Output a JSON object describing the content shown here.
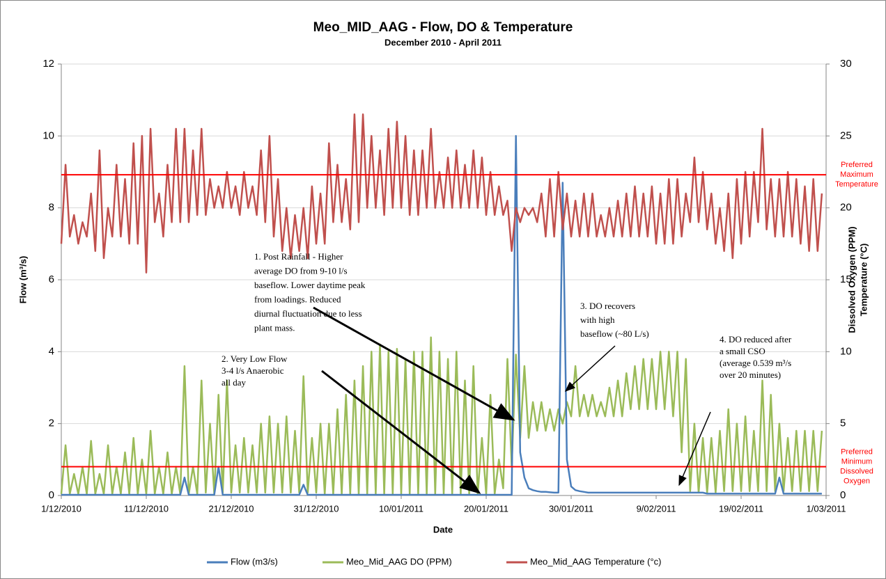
{
  "chart_data": {
    "type": "line",
    "title": "Meo_MID_AAG - Flow, DO & Temperature",
    "subtitle": "December 2010 - April 2011",
    "xlabel": "Date",
    "ylabel": "Flow (m³/s)",
    "y2label": [
      "Dissolved Oxygen (PPM)",
      "Temperature (°C)"
    ],
    "xlim": [
      "2010-12-01T00:00",
      "2011-03-01T00:00"
    ],
    "xticks": [
      {
        "value": "2010-12-01T00:00",
        "label": "1/12/2010"
      },
      {
        "value": "2010-12-11T00:00",
        "label": "11/12/2010"
      },
      {
        "value": "2010-12-21T00:00",
        "label": "21/12/2010"
      },
      {
        "value": "2010-12-31T00:00",
        "label": "31/12/2010"
      },
      {
        "value": "2011-01-10T00:00",
        "label": "10/01/2011"
      },
      {
        "value": "2011-01-20T00:00",
        "label": "20/01/2011"
      },
      {
        "value": "2011-01-30T00:00",
        "label": "30/01/2011"
      },
      {
        "value": "2011-02-09T00:00",
        "label": "9/02/2011"
      },
      {
        "value": "2011-02-19T00:00",
        "label": "19/02/2011"
      },
      {
        "value": "2011-03-01T00:00",
        "label": "1/03/2011"
      }
    ],
    "ylim": [
      0,
      12
    ],
    "yticks": [
      0,
      2,
      4,
      6,
      8,
      10,
      12
    ],
    "y2lim": [
      0,
      30
    ],
    "y2ticks": [
      0,
      5,
      10,
      15,
      20,
      25,
      30
    ],
    "grid": true,
    "legend": "bottom",
    "x": [
      "2010-12-01T00:00",
      "2010-12-01T12:00",
      "2010-12-02T00:00",
      "2010-12-02T12:00",
      "2010-12-03T00:00",
      "2010-12-03T12:00",
      "2010-12-04T00:00",
      "2010-12-04T12:00",
      "2010-12-05T00:00",
      "2010-12-05T12:00",
      "2010-12-06T00:00",
      "2010-12-06T12:00",
      "2010-12-07T00:00",
      "2010-12-07T12:00",
      "2010-12-08T00:00",
      "2010-12-08T12:00",
      "2010-12-09T00:00",
      "2010-12-09T12:00",
      "2010-12-10T00:00",
      "2010-12-10T12:00",
      "2010-12-11T00:00",
      "2010-12-11T12:00",
      "2010-12-12T00:00",
      "2010-12-12T12:00",
      "2010-12-13T00:00",
      "2010-12-13T12:00",
      "2010-12-14T00:00",
      "2010-12-14T12:00",
      "2010-12-15T00:00",
      "2010-12-15T12:00",
      "2010-12-16T00:00",
      "2010-12-16T12:00",
      "2010-12-17T00:00",
      "2010-12-17T12:00",
      "2010-12-18T00:00",
      "2010-12-18T12:00",
      "2010-12-19T00:00",
      "2010-12-19T12:00",
      "2010-12-20T00:00",
      "2010-12-20T12:00",
      "2010-12-21T00:00",
      "2010-12-21T12:00",
      "2010-12-22T00:00",
      "2010-12-22T12:00",
      "2010-12-23T00:00",
      "2010-12-23T12:00",
      "2010-12-24T00:00",
      "2010-12-24T12:00",
      "2010-12-25T00:00",
      "2010-12-25T12:00",
      "2010-12-26T00:00",
      "2010-12-26T12:00",
      "2010-12-27T00:00",
      "2010-12-27T12:00",
      "2010-12-28T00:00",
      "2010-12-28T12:00",
      "2010-12-29T00:00",
      "2010-12-29T12:00",
      "2010-12-30T00:00",
      "2010-12-30T12:00",
      "2010-12-31T00:00",
      "2010-12-31T12:00",
      "2011-01-01T00:00",
      "2011-01-01T12:00",
      "2011-01-02T00:00",
      "2011-01-02T12:00",
      "2011-01-03T00:00",
      "2011-01-03T12:00",
      "2011-01-04T00:00",
      "2011-01-04T12:00",
      "2011-01-05T00:00",
      "2011-01-05T12:00",
      "2011-01-06T00:00",
      "2011-01-06T12:00",
      "2011-01-07T00:00",
      "2011-01-07T12:00",
      "2011-01-08T00:00",
      "2011-01-08T12:00",
      "2011-01-09T00:00",
      "2011-01-09T12:00",
      "2011-01-10T00:00",
      "2011-01-10T12:00",
      "2011-01-11T00:00",
      "2011-01-11T12:00",
      "2011-01-12T00:00",
      "2011-01-12T12:00",
      "2011-01-13T00:00",
      "2011-01-13T12:00",
      "2011-01-14T00:00",
      "2011-01-14T12:00",
      "2011-01-15T00:00",
      "2011-01-15T12:00",
      "2011-01-16T00:00",
      "2011-01-16T12:00",
      "2011-01-17T00:00",
      "2011-01-17T12:00",
      "2011-01-18T00:00",
      "2011-01-18T12:00",
      "2011-01-19T00:00",
      "2011-01-19T12:00",
      "2011-01-20T00:00",
      "2011-01-20T12:00",
      "2011-01-21T00:00",
      "2011-01-21T12:00",
      "2011-01-22T00:00",
      "2011-01-22T12:00",
      "2011-01-23T00:00",
      "2011-01-23T12:00",
      "2011-01-24T00:00",
      "2011-01-24T12:00",
      "2011-01-25T00:00",
      "2011-01-25T12:00",
      "2011-01-26T00:00",
      "2011-01-26T12:00",
      "2011-01-27T00:00",
      "2011-01-27T12:00",
      "2011-01-28T00:00",
      "2011-01-28T12:00",
      "2011-01-29T00:00",
      "2011-01-29T12:00",
      "2011-01-30T00:00",
      "2011-01-30T12:00",
      "2011-01-31T00:00",
      "2011-01-31T12:00",
      "2011-02-01T00:00",
      "2011-02-01T12:00",
      "2011-02-02T00:00",
      "2011-02-02T12:00",
      "2011-02-03T00:00",
      "2011-02-03T12:00",
      "2011-02-04T00:00",
      "2011-02-04T12:00",
      "2011-02-05T00:00",
      "2011-02-05T12:00",
      "2011-02-06T00:00",
      "2011-02-06T12:00",
      "2011-02-07T00:00",
      "2011-02-07T12:00",
      "2011-02-08T00:00",
      "2011-02-08T12:00",
      "2011-02-09T00:00",
      "2011-02-09T12:00",
      "2011-02-10T00:00",
      "2011-02-10T12:00",
      "2011-02-11T00:00",
      "2011-02-11T12:00",
      "2011-02-12T00:00",
      "2011-02-12T12:00",
      "2011-02-13T00:00",
      "2011-02-13T12:00",
      "2011-02-14T00:00",
      "2011-02-14T12:00",
      "2011-02-15T00:00",
      "2011-02-15T12:00",
      "2011-02-16T00:00",
      "2011-02-16T12:00",
      "2011-02-17T00:00",
      "2011-02-17T12:00",
      "2011-02-18T00:00",
      "2011-02-18T12:00",
      "2011-02-19T00:00",
      "2011-02-19T12:00",
      "2011-02-20T00:00",
      "2011-02-20T12:00",
      "2011-02-21T00:00",
      "2011-02-21T12:00",
      "2011-02-22T00:00",
      "2011-02-22T12:00",
      "2011-02-23T00:00",
      "2011-02-23T12:00",
      "2011-02-24T00:00",
      "2011-02-24T12:00",
      "2011-02-25T00:00",
      "2011-02-25T12:00",
      "2011-02-26T00:00",
      "2011-02-26T12:00",
      "2011-02-27T00:00",
      "2011-02-27T12:00",
      "2011-02-28T00:00",
      "2011-02-28T12:00"
    ],
    "series": [
      {
        "name": "Flow (m3/s)",
        "color": "#4a7ebb",
        "axis": "y",
        "values": [
          0.02,
          0.02,
          0.02,
          0.02,
          0.02,
          0.02,
          0.02,
          0.02,
          0.02,
          0.02,
          0.02,
          0.02,
          0.02,
          0.02,
          0.02,
          0.02,
          0.02,
          0.02,
          0.02,
          0.02,
          0.02,
          0.02,
          0.02,
          0.02,
          0.02,
          0.02,
          0.02,
          0.02,
          0.02,
          0.5,
          0.02,
          0.02,
          0.02,
          0.02,
          0.02,
          0.02,
          0.02,
          0.8,
          0.02,
          0.02,
          0.02,
          0.02,
          0.02,
          0.02,
          0.02,
          0.02,
          0.02,
          0.02,
          0.02,
          0.02,
          0.02,
          0.02,
          0.02,
          0.02,
          0.02,
          0.02,
          0.02,
          0.3,
          0.02,
          0.02,
          0.02,
          0.02,
          0.02,
          0.02,
          0.02,
          0.02,
          0.02,
          0.02,
          0.02,
          0.02,
          0.02,
          0.02,
          0.02,
          0.02,
          0.02,
          0.02,
          0.02,
          0.02,
          0.02,
          0.02,
          0.02,
          0.02,
          0.02,
          0.02,
          0.02,
          0.02,
          0.02,
          0.02,
          0.02,
          0.02,
          0.02,
          0.02,
          0.02,
          0.02,
          0.02,
          0.02,
          0.02,
          0.02,
          0.02,
          0.02,
          0.02,
          0.02,
          0.02,
          0.02,
          0.02,
          0.02,
          0.02,
          10,
          1.2,
          0.5,
          0.2,
          0.15,
          0.12,
          0.1,
          0.1,
          0.09,
          0.08,
          0.08,
          8.7,
          1,
          0.25,
          0.15,
          0.12,
          0.1,
          0.08,
          0.08,
          0.08,
          0.08,
          0.08,
          0.08,
          0.08,
          0.08,
          0.08,
          0.08,
          0.08,
          0.08,
          0.08,
          0.08,
          0.08,
          0.08,
          0.08,
          0.08,
          0.08,
          0.08,
          0.08,
          0.08,
          0.08,
          0.08,
          0.08,
          0.08,
          0.08,
          0.08,
          0.05,
          0.05,
          0.05,
          0.05,
          0.05,
          0.05,
          0.05,
          0.05,
          0.05,
          0.05,
          0.05,
          0.05,
          0.05,
          0.05,
          0.05,
          0.05,
          0.05,
          0.5,
          0.05,
          0.05,
          0.05,
          0.05,
          0.05,
          0.05,
          0.05,
          0.05,
          0.05,
          0.05
        ]
      },
      {
        "name": "Meo_Mid_AAG DO (PPM)",
        "color": "#9bbb59",
        "axis": "y2",
        "values": [
          0.1,
          3.5,
          0.1,
          1.5,
          0.1,
          2,
          0.1,
          3.8,
          0.1,
          1.5,
          0.1,
          3.5,
          0.1,
          2,
          0.1,
          3,
          0.1,
          4,
          0.1,
          2.5,
          0.1,
          4.5,
          0.1,
          2,
          0.1,
          3,
          0.1,
          2,
          0.1,
          9,
          0.1,
          2,
          0.1,
          8,
          0.2,
          5,
          0.1,
          7,
          0.2,
          8,
          0.2,
          3.5,
          0.2,
          4,
          0.2,
          3.5,
          0.2,
          5,
          0.2,
          5.5,
          0.2,
          5,
          0.2,
          5.5,
          0.2,
          4.5,
          0.2,
          8.3,
          0.2,
          4,
          0.2,
          5,
          0.1,
          5,
          0.1,
          6,
          0.1,
          7,
          0.1,
          8,
          0.1,
          9,
          0.1,
          10,
          0.1,
          10.5,
          0.1,
          10,
          0.1,
          10.2,
          0.1,
          9.5,
          0.1,
          10,
          0.1,
          10,
          0.1,
          11,
          0.1,
          10,
          0.1,
          9.5,
          0.1,
          10,
          0.1,
          8,
          0.1,
          9,
          0.1,
          4,
          0.1,
          7,
          0.1,
          2.5,
          0.5,
          9.5,
          2,
          9.8,
          4,
          9,
          4,
          6.5,
          4.5,
          6.5,
          4.5,
          6,
          4.5,
          6,
          5,
          6.5,
          5.5,
          9,
          5.5,
          7,
          5.5,
          7,
          5.5,
          6.5,
          5.5,
          7.5,
          5.5,
          8,
          5.5,
          8.5,
          6,
          9,
          6,
          9.5,
          6,
          9.5,
          6,
          10,
          6,
          10,
          5.5,
          10,
          3,
          9.5,
          0.3,
          5,
          0.2,
          4,
          0.2,
          4,
          0.2,
          4.5,
          0.3,
          6,
          0.3,
          5,
          0.3,
          5.5,
          0.3,
          4.5,
          0.3,
          8,
          0.3,
          7,
          0.3,
          5,
          0.3,
          4,
          0.3,
          4.5,
          0.3,
          4.5,
          0.3,
          4.5,
          0.3,
          4.5
        ]
      },
      {
        "name": "Meo_Mid_AAG Temperature (°c)",
        "color": "#c0504d",
        "axis": "y2",
        "values": [
          17.5,
          23,
          18,
          19.5,
          17.5,
          19,
          18,
          21,
          17,
          24,
          16.5,
          20,
          18,
          23,
          18,
          22,
          17.5,
          24.5,
          17.5,
          25,
          15.5,
          25.5,
          19,
          21,
          18,
          23,
          19,
          25.5,
          19,
          25.5,
          19,
          24,
          19.5,
          25.5,
          19.5,
          22,
          20,
          21.5,
          20,
          22.5,
          20,
          21.5,
          19.5,
          22.5,
          20,
          21.5,
          19.5,
          24,
          19,
          25,
          18,
          22,
          17,
          20,
          16.5,
          19.5,
          17,
          20,
          16.5,
          21.5,
          17.5,
          21,
          17.5,
          24.5,
          19,
          23,
          19,
          22,
          18.5,
          26.5,
          19,
          26.5,
          20,
          25,
          20,
          24,
          19.5,
          25.5,
          20,
          26,
          20,
          25,
          19.5,
          24,
          19.5,
          24,
          20,
          25.5,
          20,
          22.5,
          20,
          23.5,
          20,
          24,
          20,
          23,
          20,
          24,
          20,
          23.5,
          19.5,
          22.5,
          19.5,
          21.5,
          19.5,
          20.5,
          17,
          20,
          19,
          20,
          19.5,
          20,
          19,
          21,
          18,
          22,
          18,
          22.5,
          18.5,
          21,
          18,
          20.5,
          18,
          21,
          18,
          21,
          18,
          19.5,
          18,
          20,
          18,
          20.5,
          18,
          21,
          18,
          21.5,
          18,
          21,
          18,
          21.5,
          17.5,
          21,
          17.5,
          22,
          17.5,
          22,
          18,
          21,
          19,
          23.5,
          19,
          22.5,
          18.5,
          21,
          17.5,
          20,
          17,
          21,
          16.5,
          22,
          17.5,
          22.5,
          18,
          22.5,
          19,
          25.5,
          18.5,
          22,
          18,
          22,
          18,
          22.5,
          18,
          22,
          17.5,
          21.5,
          17,
          22,
          17,
          21
        ]
      }
    ],
    "reference_lines": [
      {
        "value": 22.3,
        "axis": "y2",
        "color": "#ff0000",
        "lines": [
          "Preferred",
          "Maximum",
          "Temperature"
        ]
      },
      {
        "value": 2,
        "axis": "y2",
        "color": "#ff0000",
        "lines": [
          "Preferred",
          "Minimum",
          "Dissolved",
          "Oxygen"
        ]
      }
    ],
    "annotations": [
      {
        "lines": [
          "1. Post Rainfall - Higher",
          "average DO from 9-10 l/s",
          "baseflow. Lower daytime peak",
          "from loadings. Reduced",
          "diurnal fluctuation due to less",
          "plant mass."
        ]
      },
      {
        "lines": [
          "2. Very Low Flow",
          "3-4 l/s Anaerobic",
          "all day"
        ]
      },
      {
        "lines": [
          "3. DO recovers",
          "with high",
          "baseflow (~80 L/s)"
        ]
      },
      {
        "lines": [
          "4. DO reduced after",
          "a small CSO",
          "(average 0.539 m³/s",
          "over 20 minutes)"
        ]
      }
    ]
  }
}
